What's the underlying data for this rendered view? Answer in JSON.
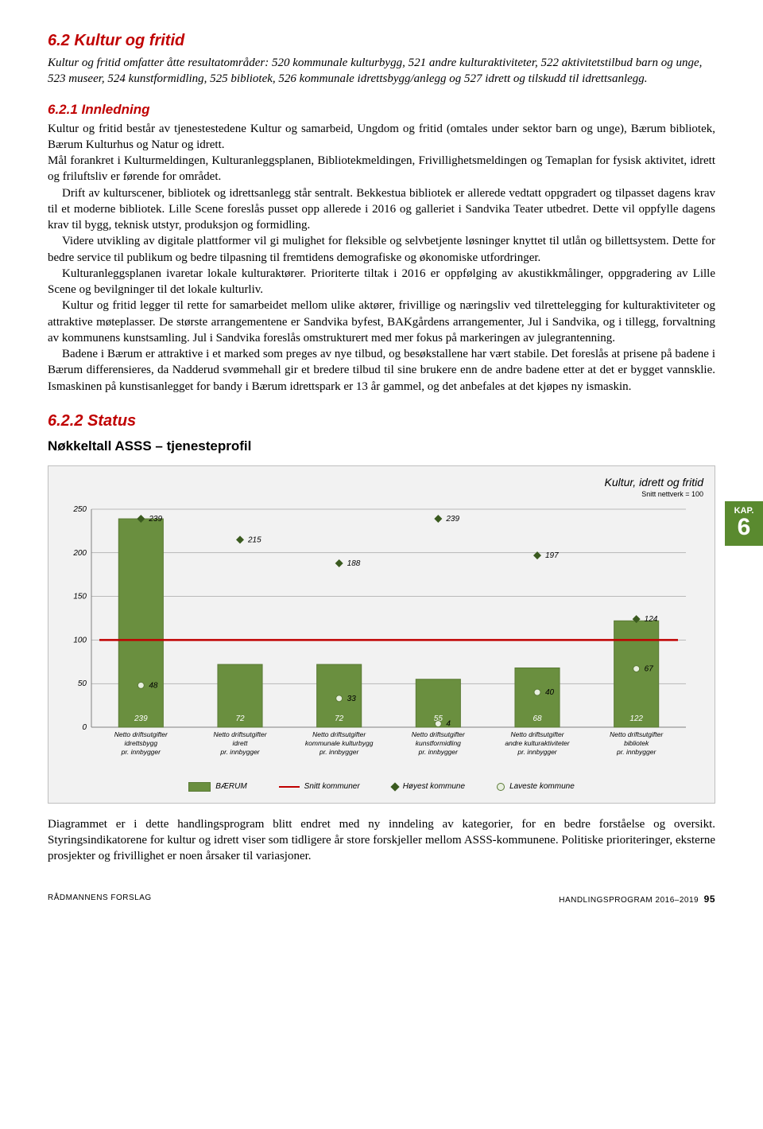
{
  "section_title": "6.2 Kultur og fritid",
  "intro": "Kultur og fritid omfatter åtte resultatområder: 520 kommunale kulturbygg, 521 andre kulturaktiviteter, 522 aktivitetstilbud barn og unge, 523 museer, 524 kunstformidling, 525 bibliotek, 526 kommunale idrettsbygg/anlegg og 527 idrett og tilskudd til idrettsanlegg.",
  "sub1_title": "6.2.1 Innledning",
  "paragraphs": [
    "Kultur og fritid består av tjenestestedene Kultur og samarbeid, Ungdom og fritid (omtales under sektor barn og unge), Bærum bibliotek, Bærum Kulturhus og Natur og idrett.",
    "Mål forankret i Kulturmeldingen, Kulturanleggsplanen, Bibliotekmeldingen, Frivillighetsmeldingen og Temaplan for fysisk aktivitet, idrett og friluftsliv er førende for området.",
    "Drift av kulturscener, bibliotek og idrettsanlegg står sentralt. Bekkestua bibliotek er allerede vedtatt oppgradert og tilpasset dagens krav til et moderne bibliotek. Lille Scene foreslås pusset opp allerede i 2016 og galleriet i Sandvika Teater utbedret. Dette vil oppfylle dagens krav til bygg, teknisk utstyr, produksjon og formidling.",
    "Videre utvikling av digitale plattformer vil gi mulighet for fleksible og selvbetjente løsninger knyttet til utlån og billettsystem. Dette for bedre service til publikum og bedre tilpasning til fremtidens demografiske og økonomiske utfordringer.",
    "Kulturanleggsplanen ivaretar lokale kulturaktører. Prioriterte tiltak i 2016 er oppfølging av akustikkmålinger, oppgradering av Lille Scene og bevilgninger til det lokale kulturliv.",
    "Kultur og fritid legger til rette for samarbeidet mellom ulike aktører, frivillige og næringsliv ved tilrettelegging for kulturaktiviteter og attraktive møteplasser. De største arrangementene er Sandvika byfest, BAKgårdens arrangementer, Jul i Sandvika, og i tillegg, forvaltning av kommunens kunstsamling. Jul i Sandvika foreslås omstrukturert med mer fokus på markeringen av julegrantenning.",
    "Badene i Bærum er attraktive i et marked som preges av nye tilbud, og besøkstallene har vært stabile. Det foreslås at prisene på badene i Bærum differensieres, da Nadderud svømmehall gir et bredere tilbud til sine brukere enn de andre badene etter at det er bygget vannsklie. Ismaskinen på kunstisanlegget for bandy i Bærum idrettspark er 13 år gammel, og det anbefales at det kjøpes ny ismaskin."
  ],
  "sub2_title": "6.2.2 Status",
  "chart_heading": "Nøkkeltall ASSS – tjenesteprofil",
  "chart": {
    "title": "Kultur, idrett og fritid",
    "subtitle": "Snitt nettverk = 100",
    "ymax": 250,
    "ytick_step": 50,
    "ref_line": 100,
    "colors": {
      "bar": "#6a8f3f",
      "bar_border": "#5a7a35",
      "ref_line": "#c00000",
      "diamond": "#3a5a1f",
      "circle_fill": "#e8efe0",
      "circle_border": "#5a7a35",
      "grid_bg": "#f2f2f2",
      "axis": "#808080",
      "label_text": "#ffffff"
    },
    "categories": [
      {
        "label1": "Netto driftsutgifter",
        "label2": "idrettsbygg",
        "label3": "pr. innbygger",
        "bar": 239,
        "high": 239,
        "low": 48
      },
      {
        "label1": "Netto driftsutgifter",
        "label2": "idrett",
        "label3": "pr. innbygger",
        "bar": 72,
        "high": 215,
        "low": null
      },
      {
        "label1": "Netto driftsutgifter",
        "label2": "kommunale kulturbygg",
        "label3": "pr. innbygger",
        "bar": 72,
        "high": 188,
        "low": 33
      },
      {
        "label1": "Netto driftsutgifter",
        "label2": "kunstformidling",
        "label3": "pr. innbygger",
        "bar": 55,
        "high": 239,
        "low": 4
      },
      {
        "label1": "Netto driftsutgifter",
        "label2": "andre kulturaktiviteter",
        "label3": "pr. innbygger",
        "bar": 68,
        "high": 197,
        "low": 40
      },
      {
        "label1": "Netto driftsutgifter",
        "label2": "bibliotek",
        "label3": "pr. innbygger",
        "bar": 122,
        "high": 124,
        "low": 67
      }
    ],
    "legend": {
      "baerum": "BÆRUM",
      "snitt": "Snitt kommuner",
      "hoy": "Høyest kommune",
      "lav": "Laveste kommune"
    }
  },
  "closing": "Diagrammet er i dette handlingsprogram blitt endret med ny inndeling av kategorier, for en bedre forståelse og oversikt. Styringsindikatorene for kultur og idrett viser som tidligere år store forskjeller mellom ASSS-kommunene. Politiske prioriteringer, eksterne prosjekter og frivillighet er noen årsaker til variasjoner.",
  "sidebar": {
    "kap": "KAP.",
    "num": "6"
  },
  "footer": {
    "left": "RÅDMANNENS FORSLAG",
    "right_text": "HANDLINGSPROGRAM 2016–2019",
    "page": "95"
  }
}
